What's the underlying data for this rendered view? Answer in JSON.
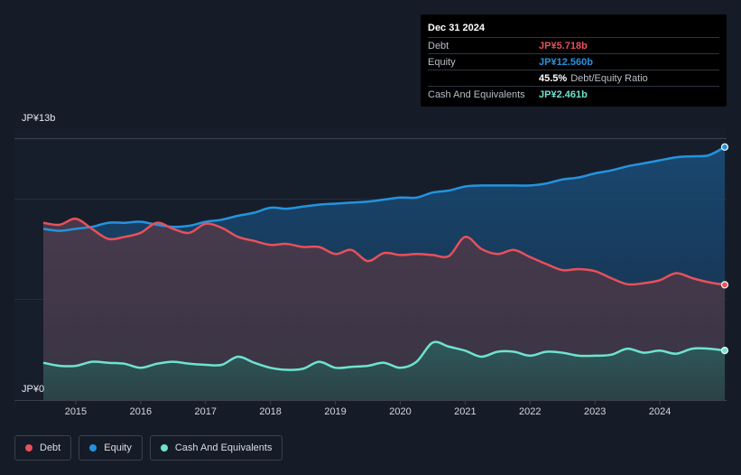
{
  "tooltip": {
    "date": "Dec 31 2024",
    "rows": [
      {
        "label": "Debt",
        "value": "JP¥5.718b",
        "color": "#e8505b"
      },
      {
        "label": "Equity",
        "value": "JP¥12.560b",
        "color": "#2394df"
      },
      {
        "label": "",
        "value": "45.5%",
        "extra": "Debt/Equity Ratio",
        "color": "#ffffff"
      },
      {
        "label": "Cash And Equivalents",
        "value": "JP¥2.461b",
        "color": "#6ee3d0"
      }
    ]
  },
  "legend": [
    {
      "label": "Debt",
      "color": "#e8505b"
    },
    {
      "label": "Equity",
      "color": "#2394df"
    },
    {
      "label": "Cash And Equivalents",
      "color": "#6ee3d0"
    }
  ],
  "chart_data": {
    "type": "area",
    "title": "",
    "y_top_label": "JP¥13b",
    "y_bottom_label": "JP¥0",
    "ylim": [
      0,
      13
    ],
    "xlim": [
      2014.5,
      2025.0
    ],
    "x_ticks": [
      "2015",
      "2016",
      "2017",
      "2018",
      "2019",
      "2020",
      "2021",
      "2022",
      "2023",
      "2024"
    ],
    "series": [
      {
        "name": "Equity",
        "color": "#2394df",
        "points": [
          [
            2014.5,
            8.5
          ],
          [
            2014.75,
            8.4
          ],
          [
            2015.0,
            8.5
          ],
          [
            2015.25,
            8.6
          ],
          [
            2015.5,
            8.8
          ],
          [
            2015.75,
            8.8
          ],
          [
            2016.0,
            8.85
          ],
          [
            2016.25,
            8.7
          ],
          [
            2016.5,
            8.6
          ],
          [
            2016.75,
            8.65
          ],
          [
            2017.0,
            8.85
          ],
          [
            2017.25,
            8.95
          ],
          [
            2017.5,
            9.15
          ],
          [
            2017.75,
            9.3
          ],
          [
            2018.0,
            9.55
          ],
          [
            2018.25,
            9.5
          ],
          [
            2018.5,
            9.6
          ],
          [
            2018.75,
            9.7
          ],
          [
            2019.0,
            9.75
          ],
          [
            2019.25,
            9.8
          ],
          [
            2019.5,
            9.85
          ],
          [
            2019.75,
            9.95
          ],
          [
            2020.0,
            10.05
          ],
          [
            2020.25,
            10.05
          ],
          [
            2020.5,
            10.3
          ],
          [
            2020.75,
            10.4
          ],
          [
            2021.0,
            10.6
          ],
          [
            2021.25,
            10.65
          ],
          [
            2021.5,
            10.65
          ],
          [
            2021.75,
            10.65
          ],
          [
            2022.0,
            10.65
          ],
          [
            2022.25,
            10.75
          ],
          [
            2022.5,
            10.95
          ],
          [
            2022.75,
            11.05
          ],
          [
            2023.0,
            11.25
          ],
          [
            2023.25,
            11.4
          ],
          [
            2023.5,
            11.6
          ],
          [
            2023.75,
            11.75
          ],
          [
            2024.0,
            11.9
          ],
          [
            2024.25,
            12.05
          ],
          [
            2024.5,
            12.1
          ],
          [
            2024.75,
            12.15
          ],
          [
            2025.0,
            12.56
          ]
        ]
      },
      {
        "name": "Debt",
        "color": "#e8505b",
        "points": [
          [
            2014.5,
            8.8
          ],
          [
            2014.75,
            8.7
          ],
          [
            2015.0,
            9.0
          ],
          [
            2015.25,
            8.5
          ],
          [
            2015.5,
            8.0
          ],
          [
            2015.75,
            8.1
          ],
          [
            2016.0,
            8.3
          ],
          [
            2016.25,
            8.8
          ],
          [
            2016.5,
            8.5
          ],
          [
            2016.75,
            8.3
          ],
          [
            2017.0,
            8.75
          ],
          [
            2017.25,
            8.55
          ],
          [
            2017.5,
            8.1
          ],
          [
            2017.75,
            7.9
          ],
          [
            2018.0,
            7.7
          ],
          [
            2018.25,
            7.75
          ],
          [
            2018.5,
            7.6
          ],
          [
            2018.75,
            7.6
          ],
          [
            2019.0,
            7.25
          ],
          [
            2019.25,
            7.45
          ],
          [
            2019.5,
            6.9
          ],
          [
            2019.75,
            7.3
          ],
          [
            2020.0,
            7.2
          ],
          [
            2020.25,
            7.25
          ],
          [
            2020.5,
            7.2
          ],
          [
            2020.75,
            7.15
          ],
          [
            2021.0,
            8.1
          ],
          [
            2021.25,
            7.5
          ],
          [
            2021.5,
            7.25
          ],
          [
            2021.75,
            7.45
          ],
          [
            2022.0,
            7.1
          ],
          [
            2022.25,
            6.75
          ],
          [
            2022.5,
            6.45
          ],
          [
            2022.75,
            6.5
          ],
          [
            2023.0,
            6.4
          ],
          [
            2023.25,
            6.05
          ],
          [
            2023.5,
            5.75
          ],
          [
            2023.75,
            5.8
          ],
          [
            2024.0,
            5.95
          ],
          [
            2024.25,
            6.3
          ],
          [
            2024.5,
            6.05
          ],
          [
            2024.75,
            5.85
          ],
          [
            2025.0,
            5.718
          ]
        ]
      },
      {
        "name": "Cash And Equivalents",
        "color": "#6ee3d0",
        "points": [
          [
            2014.5,
            1.85
          ],
          [
            2014.75,
            1.7
          ],
          [
            2015.0,
            1.7
          ],
          [
            2015.25,
            1.9
          ],
          [
            2015.5,
            1.85
          ],
          [
            2015.75,
            1.8
          ],
          [
            2016.0,
            1.6
          ],
          [
            2016.25,
            1.8
          ],
          [
            2016.5,
            1.9
          ],
          [
            2016.75,
            1.8
          ],
          [
            2017.0,
            1.75
          ],
          [
            2017.25,
            1.75
          ],
          [
            2017.5,
            2.15
          ],
          [
            2017.75,
            1.85
          ],
          [
            2018.0,
            1.6
          ],
          [
            2018.25,
            1.5
          ],
          [
            2018.5,
            1.55
          ],
          [
            2018.75,
            1.9
          ],
          [
            2019.0,
            1.6
          ],
          [
            2019.25,
            1.65
          ],
          [
            2019.5,
            1.7
          ],
          [
            2019.75,
            1.85
          ],
          [
            2020.0,
            1.6
          ],
          [
            2020.25,
            1.9
          ],
          [
            2020.5,
            2.85
          ],
          [
            2020.75,
            2.65
          ],
          [
            2021.0,
            2.45
          ],
          [
            2021.25,
            2.15
          ],
          [
            2021.5,
            2.4
          ],
          [
            2021.75,
            2.4
          ],
          [
            2022.0,
            2.2
          ],
          [
            2022.25,
            2.4
          ],
          [
            2022.5,
            2.35
          ],
          [
            2022.75,
            2.2
          ],
          [
            2023.0,
            2.2
          ],
          [
            2023.25,
            2.25
          ],
          [
            2023.5,
            2.55
          ],
          [
            2023.75,
            2.35
          ],
          [
            2024.0,
            2.45
          ],
          [
            2024.25,
            2.3
          ],
          [
            2024.5,
            2.55
          ],
          [
            2024.75,
            2.55
          ],
          [
            2025.0,
            2.461
          ]
        ]
      }
    ]
  }
}
